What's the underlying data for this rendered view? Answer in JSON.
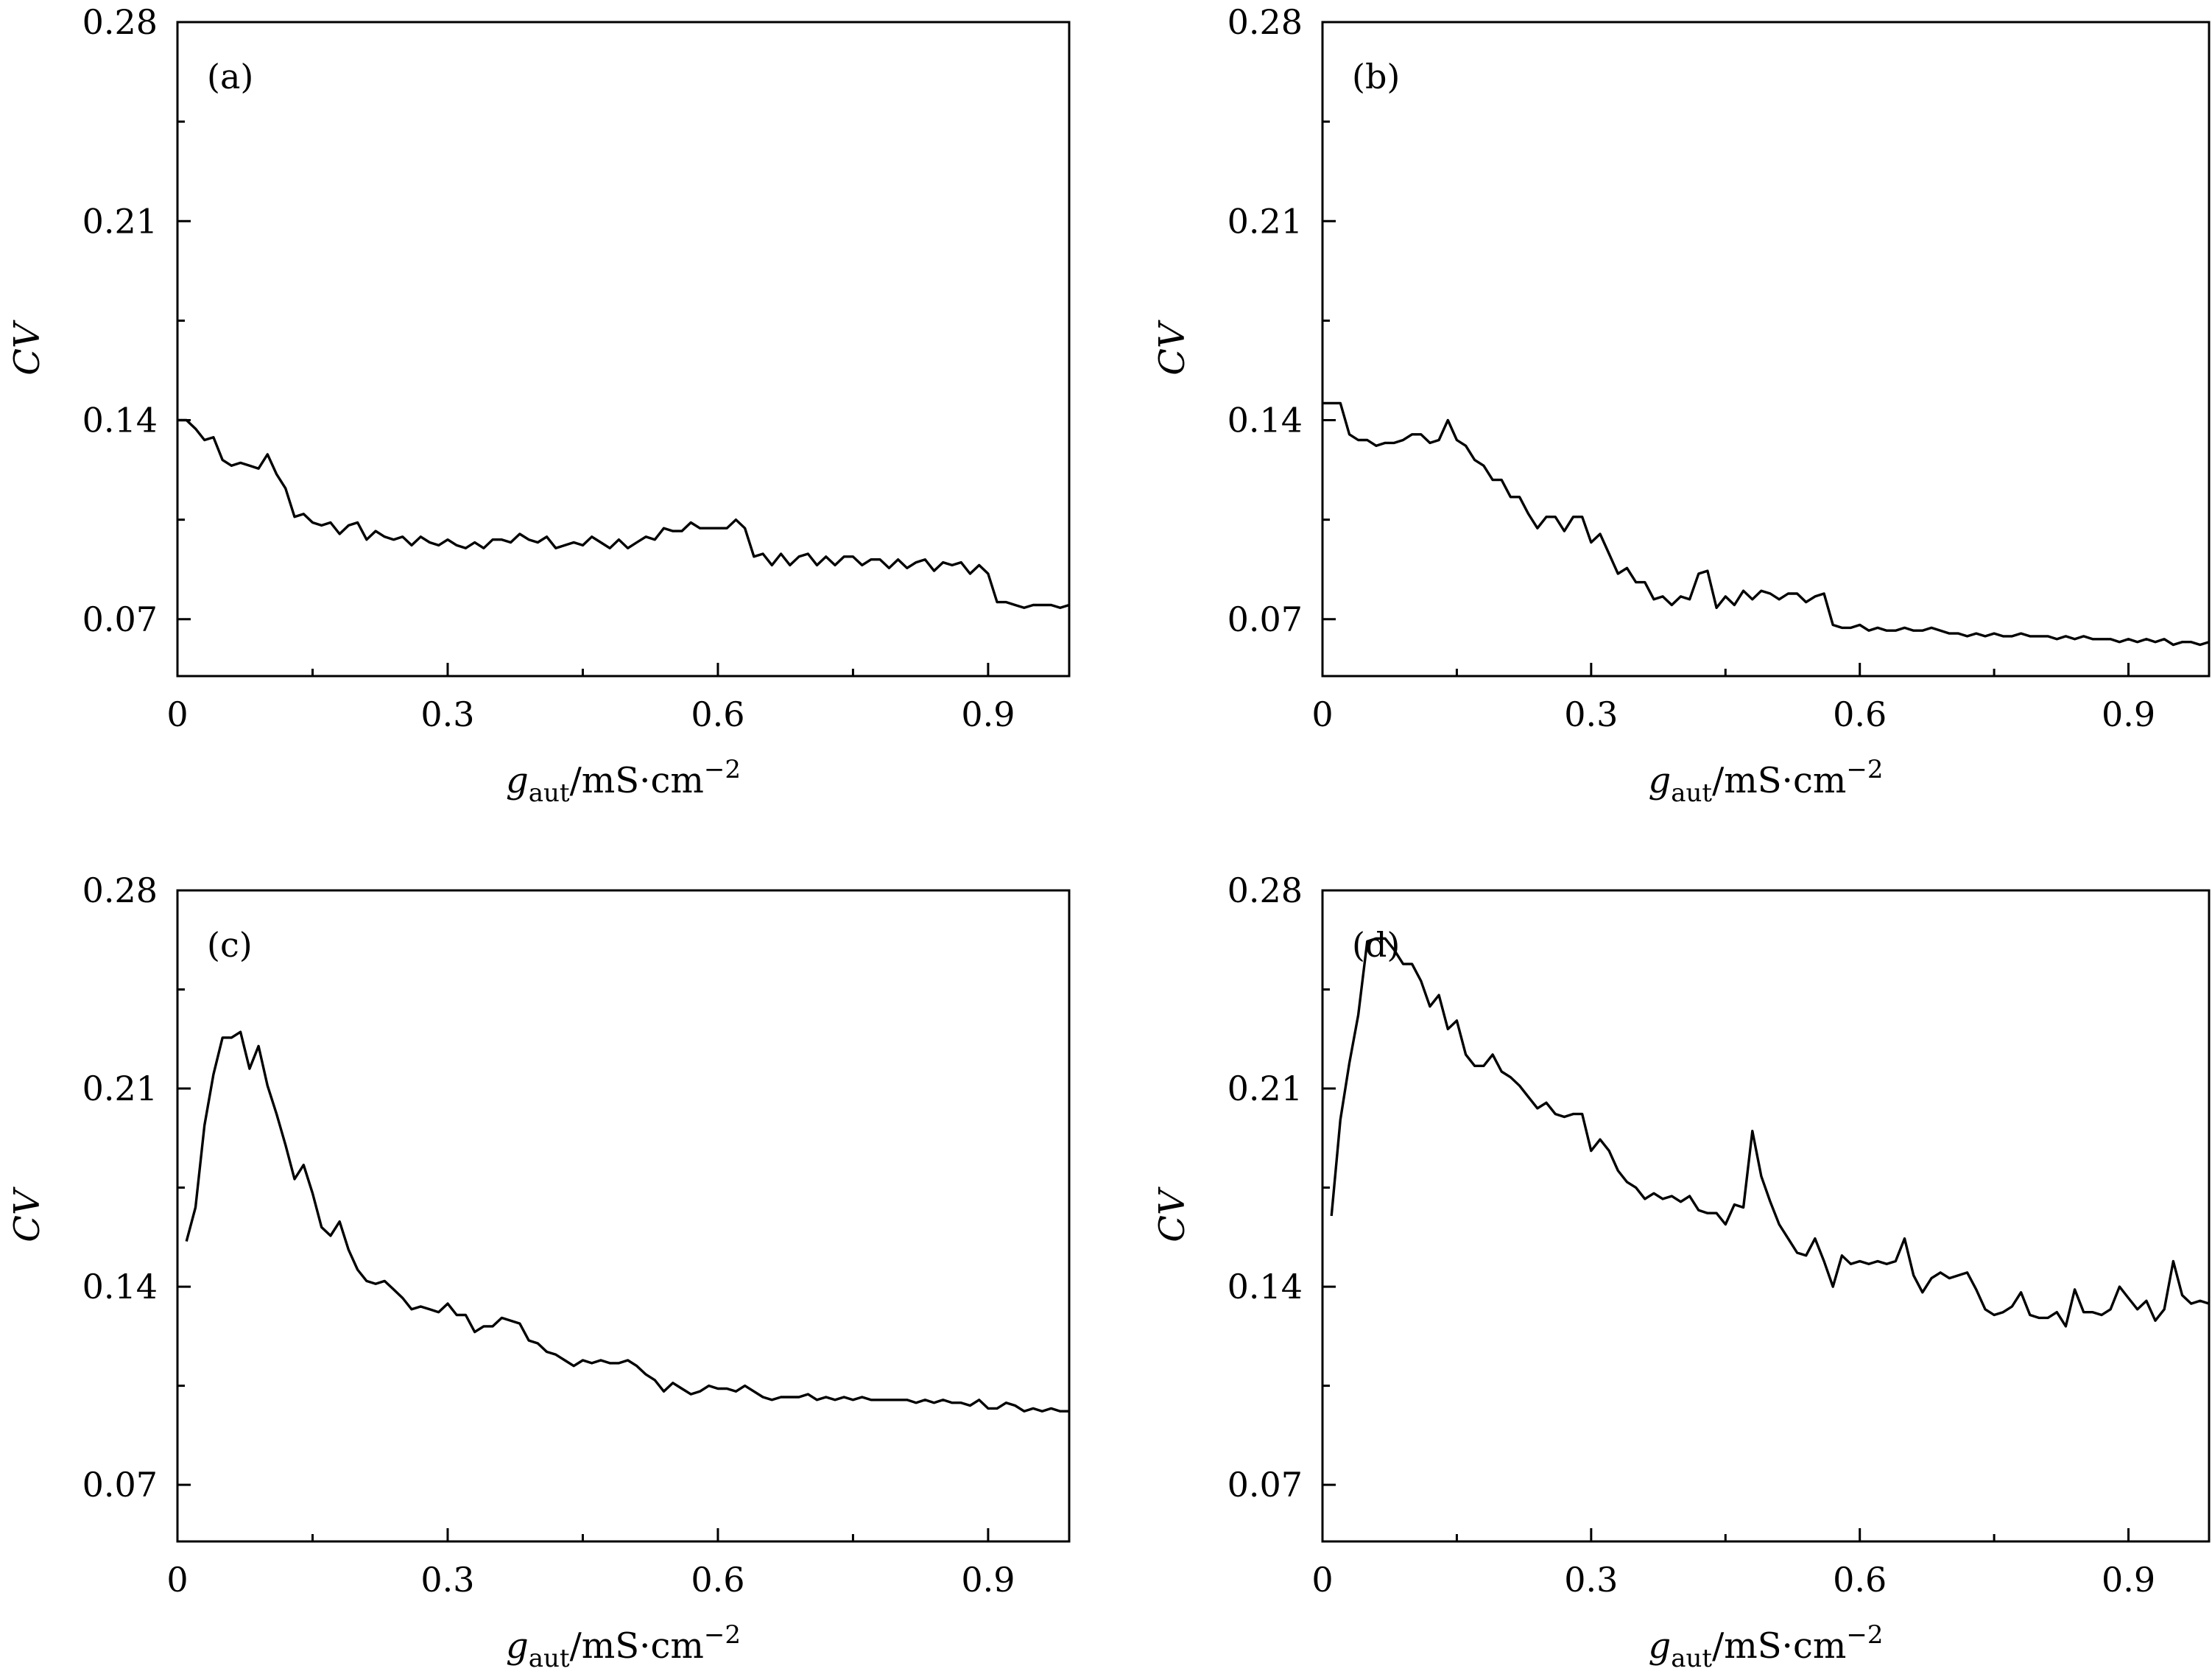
{
  "figure": {
    "chart_data": [
      {
        "type": "line",
        "panel_label": "(a)",
        "xlabel": {
          "g": "g",
          "sub": "aut",
          "unit": "/mS·cm",
          "sup": "−2"
        },
        "ylabel": "CV",
        "xlim": [
          0,
          0.99
        ],
        "ylim": [
          0.05,
          0.28
        ],
        "xticks": [
          0,
          0.3,
          0.6,
          0.9
        ],
        "xtick_labels": [
          "0",
          "0.3",
          "0.6",
          "0.9"
        ],
        "yticks": [
          0.07,
          0.14,
          0.21,
          0.28
        ],
        "ytick_labels": [
          "0.07",
          "0.14",
          "0.21",
          "0.28"
        ],
        "grid": false,
        "x": [
          0.0,
          0.01,
          0.02,
          0.03,
          0.04,
          0.05,
          0.06,
          0.07,
          0.08,
          0.09,
          0.1,
          0.11,
          0.12,
          0.13,
          0.14,
          0.15,
          0.16,
          0.17,
          0.18,
          0.19,
          0.2,
          0.21,
          0.22,
          0.23,
          0.24,
          0.25,
          0.26,
          0.27,
          0.28,
          0.29,
          0.3,
          0.31,
          0.32,
          0.33,
          0.34,
          0.35,
          0.36,
          0.37,
          0.38,
          0.39,
          0.4,
          0.41,
          0.42,
          0.43,
          0.44,
          0.45,
          0.46,
          0.47,
          0.48,
          0.49,
          0.5,
          0.51,
          0.52,
          0.53,
          0.54,
          0.55,
          0.56,
          0.57,
          0.58,
          0.59,
          0.6,
          0.61,
          0.62,
          0.63,
          0.64,
          0.65,
          0.66,
          0.67,
          0.68,
          0.69,
          0.7,
          0.71,
          0.72,
          0.73,
          0.74,
          0.75,
          0.76,
          0.77,
          0.78,
          0.79,
          0.8,
          0.81,
          0.82,
          0.83,
          0.84,
          0.85,
          0.86,
          0.87,
          0.88,
          0.89,
          0.9,
          0.91,
          0.92,
          0.93,
          0.94,
          0.95,
          0.96,
          0.97,
          0.98,
          0.99
        ],
        "y": [
          0.14,
          0.14,
          0.137,
          0.133,
          0.134,
          0.126,
          0.124,
          0.125,
          0.124,
          0.123,
          0.128,
          0.121,
          0.116,
          0.106,
          0.107,
          0.104,
          0.103,
          0.104,
          0.1,
          0.103,
          0.104,
          0.098,
          0.101,
          0.099,
          0.098,
          0.099,
          0.096,
          0.099,
          0.097,
          0.096,
          0.098,
          0.096,
          0.095,
          0.097,
          0.095,
          0.098,
          0.098,
          0.097,
          0.1,
          0.098,
          0.097,
          0.099,
          0.095,
          0.096,
          0.097,
          0.096,
          0.099,
          0.097,
          0.095,
          0.098,
          0.095,
          0.097,
          0.099,
          0.098,
          0.102,
          0.101,
          0.101,
          0.104,
          0.102,
          0.102,
          0.102,
          0.102,
          0.105,
          0.102,
          0.092,
          0.093,
          0.089,
          0.093,
          0.089,
          0.092,
          0.093,
          0.089,
          0.092,
          0.089,
          0.092,
          0.092,
          0.089,
          0.091,
          0.091,
          0.088,
          0.091,
          0.088,
          0.09,
          0.091,
          0.087,
          0.09,
          0.089,
          0.09,
          0.086,
          0.089,
          0.086,
          0.076,
          0.076,
          0.075,
          0.074,
          0.075,
          0.075,
          0.075,
          0.074,
          0.075
        ]
      },
      {
        "type": "line",
        "panel_label": "(b)",
        "xlabel": {
          "g": "g",
          "sub": "aut",
          "unit": "/mS·cm",
          "sup": "−2"
        },
        "ylabel": "CV",
        "xlim": [
          0,
          0.99
        ],
        "ylim": [
          0.05,
          0.28
        ],
        "xticks": [
          0,
          0.3,
          0.6,
          0.9
        ],
        "xtick_labels": [
          "0",
          "0.3",
          "0.6",
          "0.9"
        ],
        "yticks": [
          0.07,
          0.14,
          0.21,
          0.28
        ],
        "ytick_labels": [
          "0.07",
          "0.14",
          "0.21",
          "0.28"
        ],
        "grid": false,
        "x": [
          0.0,
          0.01,
          0.02,
          0.03,
          0.04,
          0.05,
          0.06,
          0.07,
          0.08,
          0.09,
          0.1,
          0.11,
          0.12,
          0.13,
          0.14,
          0.15,
          0.16,
          0.17,
          0.18,
          0.19,
          0.2,
          0.21,
          0.22,
          0.23,
          0.24,
          0.25,
          0.26,
          0.27,
          0.28,
          0.29,
          0.3,
          0.31,
          0.32,
          0.33,
          0.34,
          0.35,
          0.36,
          0.37,
          0.38,
          0.39,
          0.4,
          0.41,
          0.42,
          0.43,
          0.44,
          0.45,
          0.46,
          0.47,
          0.48,
          0.49,
          0.5,
          0.51,
          0.52,
          0.53,
          0.54,
          0.55,
          0.56,
          0.57,
          0.58,
          0.59,
          0.6,
          0.61,
          0.62,
          0.63,
          0.64,
          0.65,
          0.66,
          0.67,
          0.68,
          0.69,
          0.7,
          0.71,
          0.72,
          0.73,
          0.74,
          0.75,
          0.76,
          0.77,
          0.78,
          0.79,
          0.8,
          0.81,
          0.82,
          0.83,
          0.84,
          0.85,
          0.86,
          0.87,
          0.88,
          0.89,
          0.9,
          0.91,
          0.92,
          0.93,
          0.94,
          0.95,
          0.96,
          0.97,
          0.98,
          0.99
        ],
        "y": [
          0.146,
          0.146,
          0.146,
          0.135,
          0.133,
          0.133,
          0.131,
          0.132,
          0.132,
          0.133,
          0.135,
          0.135,
          0.132,
          0.133,
          0.14,
          0.133,
          0.131,
          0.126,
          0.124,
          0.119,
          0.119,
          0.113,
          0.113,
          0.107,
          0.102,
          0.106,
          0.106,
          0.101,
          0.106,
          0.106,
          0.097,
          0.1,
          0.093,
          0.086,
          0.088,
          0.083,
          0.083,
          0.077,
          0.078,
          0.075,
          0.078,
          0.077,
          0.086,
          0.087,
          0.074,
          0.078,
          0.075,
          0.08,
          0.077,
          0.08,
          0.079,
          0.077,
          0.079,
          0.079,
          0.076,
          0.078,
          0.079,
          0.068,
          0.067,
          0.067,
          0.068,
          0.066,
          0.067,
          0.066,
          0.066,
          0.067,
          0.066,
          0.066,
          0.067,
          0.066,
          0.065,
          0.065,
          0.064,
          0.065,
          0.064,
          0.065,
          0.064,
          0.064,
          0.065,
          0.064,
          0.064,
          0.064,
          0.063,
          0.064,
          0.063,
          0.064,
          0.063,
          0.063,
          0.063,
          0.062,
          0.063,
          0.062,
          0.063,
          0.062,
          0.063,
          0.061,
          0.062,
          0.062,
          0.061,
          0.062
        ]
      },
      {
        "type": "line",
        "panel_label": "(c)",
        "xlabel": {
          "g": "g",
          "sub": "aut",
          "unit": "/mS·cm",
          "sup": "−2"
        },
        "ylabel": "CV",
        "xlim": [
          0,
          0.99
        ],
        "ylim": [
          0.05,
          0.28
        ],
        "xticks": [
          0,
          0.3,
          0.6,
          0.9
        ],
        "xtick_labels": [
          "0",
          "0.3",
          "0.6",
          "0.9"
        ],
        "yticks": [
          0.07,
          0.14,
          0.21,
          0.28
        ],
        "ytick_labels": [
          "0.07",
          "0.14",
          "0.21",
          "0.28"
        ],
        "grid": false,
        "x": [
          0.01,
          0.02,
          0.03,
          0.04,
          0.05,
          0.06,
          0.07,
          0.08,
          0.09,
          0.1,
          0.11,
          0.12,
          0.13,
          0.14,
          0.15,
          0.16,
          0.17,
          0.18,
          0.19,
          0.2,
          0.21,
          0.22,
          0.23,
          0.24,
          0.25,
          0.26,
          0.27,
          0.28,
          0.29,
          0.3,
          0.31,
          0.32,
          0.33,
          0.34,
          0.35,
          0.36,
          0.37,
          0.38,
          0.39,
          0.4,
          0.41,
          0.42,
          0.43,
          0.44,
          0.45,
          0.46,
          0.47,
          0.48,
          0.49,
          0.5,
          0.51,
          0.52,
          0.53,
          0.54,
          0.55,
          0.56,
          0.57,
          0.58,
          0.59,
          0.6,
          0.61,
          0.62,
          0.63,
          0.64,
          0.65,
          0.66,
          0.67,
          0.68,
          0.69,
          0.7,
          0.71,
          0.72,
          0.73,
          0.74,
          0.75,
          0.76,
          0.77,
          0.78,
          0.79,
          0.8,
          0.81,
          0.82,
          0.83,
          0.84,
          0.85,
          0.86,
          0.87,
          0.88,
          0.89,
          0.9,
          0.91,
          0.92,
          0.93,
          0.94,
          0.95,
          0.96,
          0.97,
          0.98,
          0.99
        ],
        "y": [
          0.156,
          0.168,
          0.197,
          0.215,
          0.228,
          0.228,
          0.23,
          0.217,
          0.225,
          0.211,
          0.201,
          0.19,
          0.178,
          0.183,
          0.173,
          0.161,
          0.158,
          0.163,
          0.153,
          0.146,
          0.142,
          0.141,
          0.142,
          0.139,
          0.136,
          0.132,
          0.133,
          0.132,
          0.131,
          0.134,
          0.13,
          0.13,
          0.124,
          0.126,
          0.126,
          0.129,
          0.128,
          0.127,
          0.121,
          0.12,
          0.117,
          0.116,
          0.114,
          0.112,
          0.114,
          0.113,
          0.114,
          0.113,
          0.113,
          0.114,
          0.112,
          0.109,
          0.107,
          0.103,
          0.106,
          0.104,
          0.102,
          0.103,
          0.105,
          0.104,
          0.104,
          0.103,
          0.105,
          0.103,
          0.101,
          0.1,
          0.101,
          0.101,
          0.101,
          0.102,
          0.1,
          0.101,
          0.1,
          0.101,
          0.1,
          0.101,
          0.1,
          0.1,
          0.1,
          0.1,
          0.1,
          0.099,
          0.1,
          0.099,
          0.1,
          0.099,
          0.099,
          0.098,
          0.1,
          0.097,
          0.097,
          0.099,
          0.098,
          0.096,
          0.097,
          0.096,
          0.097,
          0.096,
          0.096
        ]
      },
      {
        "type": "line",
        "panel_label": "(d)",
        "xlabel": {
          "g": "g",
          "sub": "aut",
          "unit": "/mS·cm",
          "sup": "−2"
        },
        "ylabel": "CV",
        "xlim": [
          0,
          0.99
        ],
        "ylim": [
          0.05,
          0.28
        ],
        "xticks": [
          0,
          0.3,
          0.6,
          0.9
        ],
        "xtick_labels": [
          "0",
          "0.3",
          "0.6",
          "0.9"
        ],
        "yticks": [
          0.07,
          0.14,
          0.21,
          0.28
        ],
        "ytick_labels": [
          "0.07",
          "0.14",
          "0.21",
          "0.28"
        ],
        "grid": false,
        "x": [
          0.01,
          0.02,
          0.03,
          0.04,
          0.05,
          0.06,
          0.07,
          0.08,
          0.09,
          0.1,
          0.11,
          0.12,
          0.13,
          0.14,
          0.15,
          0.16,
          0.17,
          0.18,
          0.19,
          0.2,
          0.21,
          0.22,
          0.23,
          0.24,
          0.25,
          0.26,
          0.27,
          0.28,
          0.29,
          0.3,
          0.31,
          0.32,
          0.33,
          0.34,
          0.35,
          0.36,
          0.37,
          0.38,
          0.39,
          0.4,
          0.41,
          0.42,
          0.43,
          0.44,
          0.45,
          0.46,
          0.47,
          0.48,
          0.49,
          0.5,
          0.51,
          0.52,
          0.53,
          0.54,
          0.55,
          0.56,
          0.57,
          0.58,
          0.59,
          0.6,
          0.61,
          0.62,
          0.63,
          0.64,
          0.65,
          0.66,
          0.67,
          0.68,
          0.69,
          0.7,
          0.71,
          0.72,
          0.73,
          0.74,
          0.75,
          0.76,
          0.77,
          0.78,
          0.79,
          0.8,
          0.81,
          0.82,
          0.83,
          0.84,
          0.85,
          0.86,
          0.87,
          0.88,
          0.89,
          0.9,
          0.91,
          0.92,
          0.93,
          0.94,
          0.95,
          0.96,
          0.97,
          0.98,
          0.99
        ],
        "y": [
          0.165,
          0.199,
          0.219,
          0.236,
          0.262,
          0.263,
          0.263,
          0.259,
          0.254,
          0.254,
          0.248,
          0.239,
          0.243,
          0.231,
          0.234,
          0.222,
          0.218,
          0.218,
          0.222,
          0.216,
          0.214,
          0.211,
          0.207,
          0.203,
          0.205,
          0.201,
          0.2,
          0.201,
          0.201,
          0.188,
          0.192,
          0.188,
          0.181,
          0.177,
          0.175,
          0.171,
          0.173,
          0.171,
          0.172,
          0.17,
          0.172,
          0.167,
          0.166,
          0.166,
          0.162,
          0.169,
          0.168,
          0.195,
          0.179,
          0.17,
          0.162,
          0.157,
          0.152,
          0.151,
          0.157,
          0.149,
          0.14,
          0.151,
          0.148,
          0.149,
          0.148,
          0.149,
          0.148,
          0.149,
          0.157,
          0.144,
          0.138,
          0.143,
          0.145,
          0.143,
          0.144,
          0.145,
          0.139,
          0.132,
          0.13,
          0.131,
          0.133,
          0.138,
          0.13,
          0.129,
          0.129,
          0.131,
          0.126,
          0.139,
          0.131,
          0.131,
          0.13,
          0.132,
          0.14,
          0.136,
          0.132,
          0.135,
          0.128,
          0.132,
          0.149,
          0.137,
          0.134,
          0.135,
          0.134
        ]
      }
    ]
  }
}
